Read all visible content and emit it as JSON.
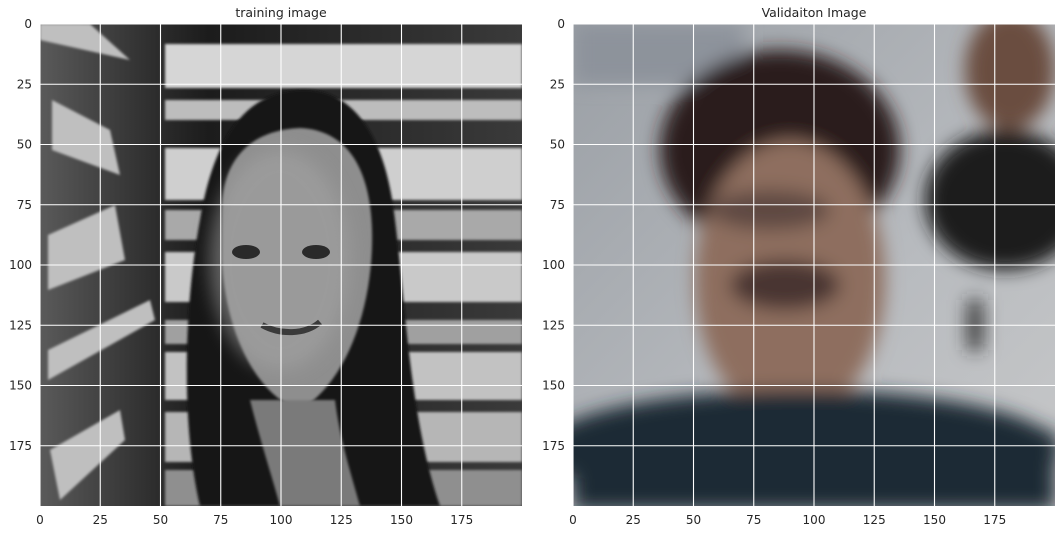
{
  "chart_data": [
    {
      "type": "image",
      "title": "training image",
      "xlim": [
        0,
        200
      ],
      "ylim": [
        200,
        0
      ],
      "xticks": [
        0,
        25,
        50,
        75,
        100,
        125,
        150,
        175
      ],
      "yticks": [
        0,
        25,
        50,
        75,
        100,
        125,
        150,
        175
      ],
      "grid": true,
      "image_content": "grayscale photo of a smiling woman with long dark hair in front of window blinds",
      "colors": {
        "grid": "#ffffff",
        "tick_text": "#262626"
      }
    },
    {
      "type": "image",
      "title": "Validaiton Image",
      "xlim": [
        0,
        200
      ],
      "ylim": [
        200,
        0
      ],
      "xticks": [
        0,
        25,
        50,
        75,
        100,
        125,
        150,
        175
      ],
      "yticks": [
        0,
        25,
        50,
        75,
        100,
        125,
        150,
        175
      ],
      "grid": true,
      "image_content": "blurry color photo of a man with short dark hair in a dark top",
      "colors": {
        "grid": "#ffffff",
        "tick_text": "#262626"
      }
    }
  ]
}
